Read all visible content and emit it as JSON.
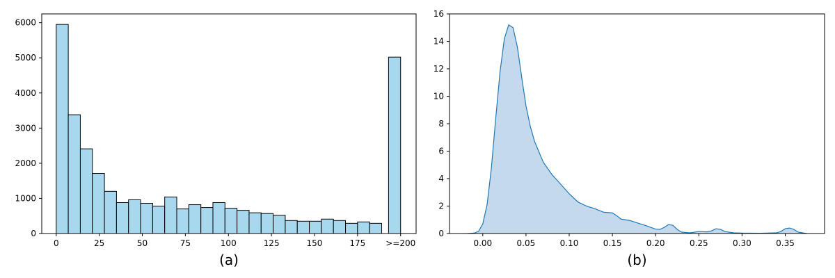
{
  "chart_data": [
    {
      "type": "bar",
      "caption": "(a)",
      "bar_color": "#a7d8ee",
      "edge_color": "#000000",
      "bins": [
        {
          "start": 0,
          "end": 7,
          "value": 5950
        },
        {
          "start": 7,
          "end": 14,
          "value": 3380
        },
        {
          "start": 14,
          "end": 21,
          "value": 2410
        },
        {
          "start": 21,
          "end": 28,
          "value": 1710
        },
        {
          "start": 28,
          "end": 35,
          "value": 1200
        },
        {
          "start": 35,
          "end": 42,
          "value": 880
        },
        {
          "start": 42,
          "end": 49,
          "value": 960
        },
        {
          "start": 49,
          "end": 56,
          "value": 860
        },
        {
          "start": 56,
          "end": 63,
          "value": 780
        },
        {
          "start": 63,
          "end": 70,
          "value": 1040
        },
        {
          "start": 70,
          "end": 77,
          "value": 700
        },
        {
          "start": 77,
          "end": 84,
          "value": 820
        },
        {
          "start": 84,
          "end": 91,
          "value": 740
        },
        {
          "start": 91,
          "end": 98,
          "value": 880
        },
        {
          "start": 98,
          "end": 105,
          "value": 720
        },
        {
          "start": 105,
          "end": 112,
          "value": 660
        },
        {
          "start": 112,
          "end": 119,
          "value": 590
        },
        {
          "start": 119,
          "end": 126,
          "value": 570
        },
        {
          "start": 126,
          "end": 133,
          "value": 520
        },
        {
          "start": 133,
          "end": 140,
          "value": 370
        },
        {
          "start": 140,
          "end": 147,
          "value": 350
        },
        {
          "start": 147,
          "end": 154,
          "value": 350
        },
        {
          "start": 154,
          "end": 161,
          "value": 410
        },
        {
          "start": 161,
          "end": 168,
          "value": 370
        },
        {
          "start": 168,
          "end": 175,
          "value": 290
        },
        {
          "start": 175,
          "end": 182,
          "value": 330
        },
        {
          "start": 182,
          "end": 189,
          "value": 290
        },
        {
          "start": 193,
          "end": 200,
          "value": 5020
        }
      ],
      "xlim": [
        -8.4,
        209
      ],
      "ylim": [
        0,
        6250
      ],
      "x_ticks": [
        {
          "value": 0,
          "label": "0"
        },
        {
          "value": 25,
          "label": "25"
        },
        {
          "value": 50,
          "label": "50"
        },
        {
          "value": 75,
          "label": "75"
        },
        {
          "value": 100,
          "label": "100"
        },
        {
          "value": 125,
          "label": "125"
        },
        {
          "value": 150,
          "label": "150"
        },
        {
          "value": 175,
          "label": "175"
        },
        {
          "value": 200,
          "label": ">=200"
        }
      ],
      "y_ticks": [
        0,
        1000,
        2000,
        3000,
        4000,
        5000,
        6000
      ],
      "grid": false
    },
    {
      "type": "area",
      "caption": "(b)",
      "line_color": "#1f77b4",
      "fill_color": "#c4d9ec",
      "x": [
        -0.018,
        -0.01,
        -0.005,
        0.0,
        0.005,
        0.01,
        0.015,
        0.02,
        0.025,
        0.03,
        0.035,
        0.04,
        0.045,
        0.05,
        0.055,
        0.06,
        0.07,
        0.08,
        0.09,
        0.1,
        0.11,
        0.12,
        0.13,
        0.14,
        0.15,
        0.155,
        0.16,
        0.17,
        0.18,
        0.19,
        0.2,
        0.205,
        0.21,
        0.215,
        0.22,
        0.225,
        0.23,
        0.24,
        0.25,
        0.26,
        0.265,
        0.27,
        0.275,
        0.28,
        0.29,
        0.3,
        0.32,
        0.34,
        0.345,
        0.35,
        0.355,
        0.36,
        0.365,
        0.375
      ],
      "y": [
        0.0,
        0.03,
        0.15,
        0.7,
        2.1,
        4.8,
        8.4,
        11.8,
        14.2,
        15.2,
        15.0,
        13.6,
        11.4,
        9.3,
        7.8,
        6.7,
        5.2,
        4.3,
        3.6,
        2.9,
        2.3,
        2.0,
        1.8,
        1.55,
        1.5,
        1.3,
        1.05,
        0.95,
        0.75,
        0.55,
        0.32,
        0.3,
        0.45,
        0.65,
        0.6,
        0.3,
        0.1,
        0.05,
        0.15,
        0.12,
        0.2,
        0.35,
        0.3,
        0.15,
        0.05,
        0.03,
        0.02,
        0.05,
        0.15,
        0.35,
        0.4,
        0.3,
        0.1,
        0.0
      ],
      "xlim": [
        -0.0385,
        0.3955
      ],
      "ylim": [
        0,
        16
      ],
      "x_ticks": [
        {
          "value": 0.0,
          "label": "0.00"
        },
        {
          "value": 0.05,
          "label": "0.05"
        },
        {
          "value": 0.1,
          "label": "0.10"
        },
        {
          "value": 0.15,
          "label": "0.15"
        },
        {
          "value": 0.2,
          "label": "0.20"
        },
        {
          "value": 0.25,
          "label": "0.25"
        },
        {
          "value": 0.3,
          "label": "0.30"
        },
        {
          "value": 0.35,
          "label": "0.35"
        }
      ],
      "y_ticks": [
        0,
        2,
        4,
        6,
        8,
        10,
        12,
        14,
        16
      ],
      "grid": false
    }
  ]
}
